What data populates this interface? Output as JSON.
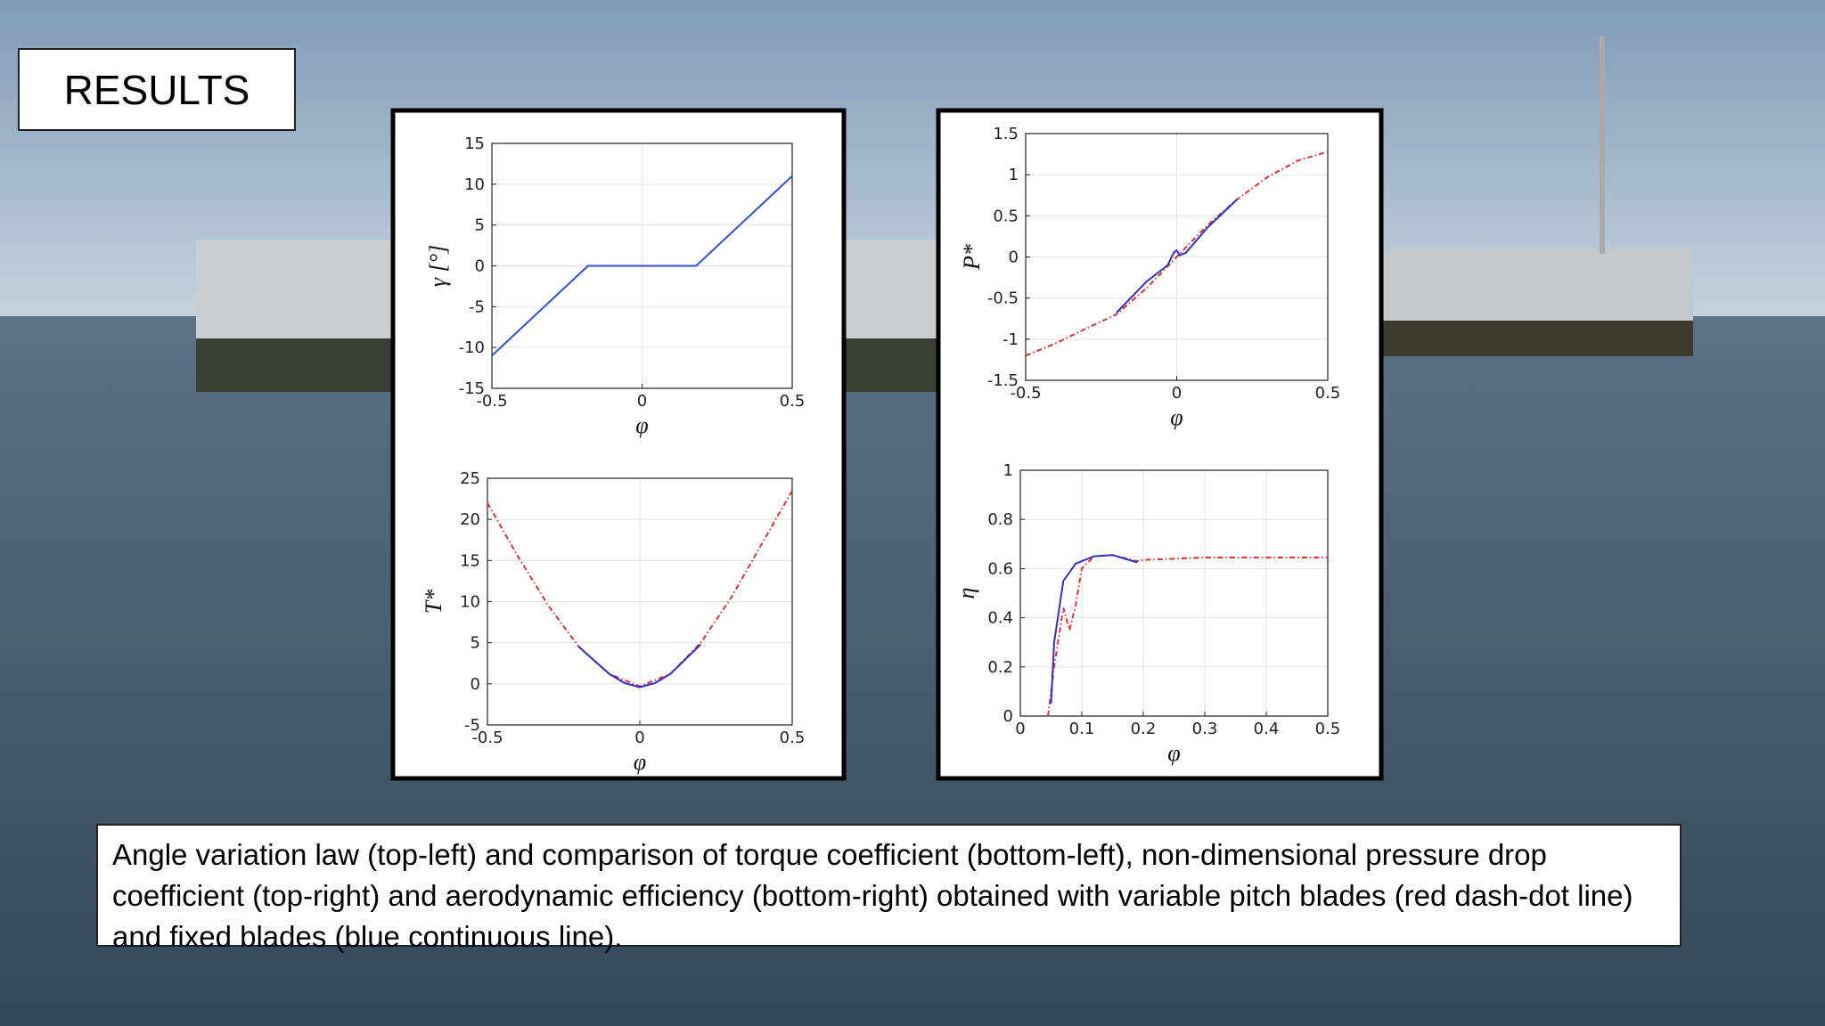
{
  "slide": {
    "title": "RESULTS",
    "caption": "Angle variation law (top-left) and comparison of torque coefficient (bottom-left), non-dimensional pressure drop coefficient (top-right) and aerodynamic efficiency (bottom-right) obtained with variable pitch blades (red dash-dot line) and fixed blades (blue continuous line)."
  },
  "chart_data": [
    {
      "type": "line",
      "x_label": "φ",
      "y_label": "γ [°]",
      "xlim": [
        -0.5,
        0.5
      ],
      "xticks": [
        -0.5,
        0,
        0.5
      ],
      "ylim": [
        -15,
        15
      ],
      "yticks": [
        -15,
        -10,
        -5,
        0,
        5,
        10,
        15
      ],
      "grid": true,
      "series": [
        {
          "color": "#3050d0",
          "style": "solid",
          "x": [
            -0.5,
            -0.18,
            0.18,
            0.5
          ],
          "values": [
            -11,
            0,
            0,
            11
          ]
        }
      ]
    },
    {
      "type": "line",
      "x_label": "φ",
      "y_label": "T*",
      "xlim": [
        -0.5,
        0.5
      ],
      "xticks": [
        -0.5,
        0,
        0.5
      ],
      "ylim": [
        -5,
        25
      ],
      "yticks": [
        -5,
        0,
        5,
        10,
        15,
        20,
        25
      ],
      "grid": true,
      "series": [
        {
          "color": "#e03030",
          "style": "dash-dot",
          "x": [
            -0.5,
            -0.4,
            -0.3,
            -0.2,
            -0.1,
            0,
            0.1,
            0.2,
            0.3,
            0.4,
            0.5
          ],
          "values": [
            22,
            15.5,
            9.5,
            4.5,
            1.2,
            -0.3,
            1.2,
            5,
            10.5,
            17,
            23.5
          ]
        },
        {
          "color": "#3030c0",
          "style": "solid",
          "x": [
            -0.2,
            -0.1,
            -0.05,
            0,
            0.05,
            0.1,
            0.2
          ],
          "values": [
            4.5,
            1.2,
            0.1,
            -0.4,
            0.1,
            1.2,
            4.8
          ]
        }
      ]
    },
    {
      "type": "line",
      "x_label": "φ",
      "y_label": "P*",
      "xlim": [
        -0.5,
        0.5
      ],
      "xticks": [
        -0.5,
        0,
        0.5
      ],
      "ylim": [
        -1.5,
        1.5
      ],
      "yticks": [
        -1.5,
        -1,
        -0.5,
        0,
        0.5,
        1,
        1.5
      ],
      "grid": true,
      "series": [
        {
          "color": "#e03030",
          "style": "dash-dot",
          "x": [
            -0.5,
            -0.4,
            -0.3,
            -0.2,
            -0.1,
            0,
            0.1,
            0.2,
            0.3,
            0.4,
            0.5
          ],
          "values": [
            -1.2,
            -1.05,
            -0.87,
            -0.7,
            -0.38,
            0,
            0.38,
            0.7,
            0.97,
            1.17,
            1.28
          ]
        },
        {
          "color": "#3030c0",
          "style": "solid",
          "x": [
            -0.2,
            -0.1,
            -0.03,
            -0.01,
            0,
            0.01,
            0.03,
            0.1,
            0.2
          ],
          "values": [
            -0.68,
            -0.3,
            -0.1,
            0.05,
            0.08,
            0.02,
            0.05,
            0.35,
            0.7
          ]
        }
      ]
    },
    {
      "type": "line",
      "x_label": "φ",
      "y_label": "η",
      "xlim": [
        0,
        0.5
      ],
      "xticks": [
        0,
        0.1,
        0.2,
        0.3,
        0.4,
        0.5
      ],
      "ylim": [
        0,
        1
      ],
      "yticks": [
        0,
        0.2,
        0.4,
        0.6,
        0.8,
        1
      ],
      "grid": true,
      "series": [
        {
          "color": "#e03030",
          "style": "dash-dot",
          "x": [
            0.045,
            0.055,
            0.07,
            0.08,
            0.09,
            0.1,
            0.12,
            0.15,
            0.19,
            0.2,
            0.3,
            0.4,
            0.5
          ],
          "values": [
            0,
            0.2,
            0.44,
            0.35,
            0.45,
            0.6,
            0.65,
            0.655,
            0.63,
            0.635,
            0.645,
            0.645,
            0.645
          ]
        },
        {
          "color": "#3030c0",
          "style": "solid",
          "x": [
            0.05,
            0.055,
            0.07,
            0.09,
            0.12,
            0.15,
            0.19
          ],
          "values": [
            0.05,
            0.3,
            0.55,
            0.62,
            0.65,
            0.655,
            0.625
          ]
        }
      ]
    }
  ]
}
